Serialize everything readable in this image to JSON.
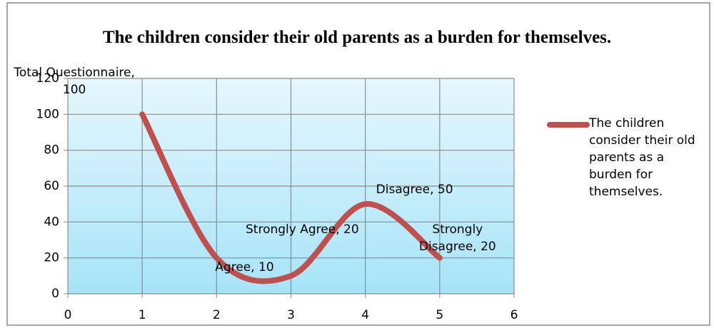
{
  "chart_data": {
    "type": "line",
    "title": "The children consider their old parents as a burden for themselves.",
    "x": [
      1,
      2,
      3,
      4,
      5
    ],
    "series": [
      {
        "name": "The children consider their old parents as a burden for themselves.",
        "color": "#c0504d",
        "values": [
          100,
          20,
          10,
          50,
          20
        ],
        "value_labels": [
          "Total Questionnaire, 100",
          "Strongly Agree, 20",
          "Agree, 10",
          "Disagree, 50",
          "Strongly Disagree, 20"
        ]
      }
    ],
    "xlim": [
      0,
      6
    ],
    "xticks": [
      0,
      1,
      2,
      3,
      4,
      5,
      6
    ],
    "ylim": [
      0,
      120
    ],
    "yticks": [
      0,
      20,
      40,
      60,
      80,
      100,
      120
    ],
    "grid": true,
    "legend": "right",
    "smooth": true
  }
}
